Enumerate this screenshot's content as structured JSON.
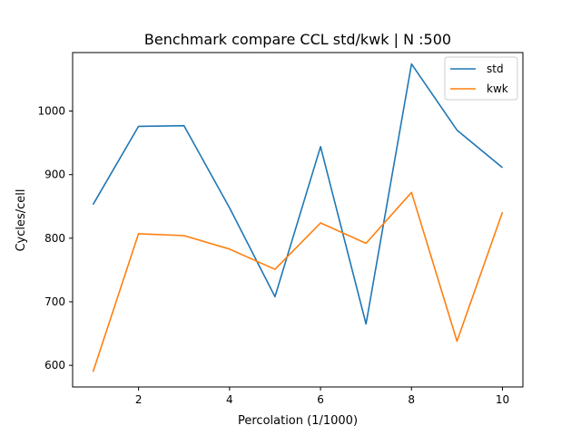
{
  "chart_data": {
    "type": "line",
    "title": "Benchmark compare CCL std/kwk | N :500",
    "xlabel": "Percolation (1/1000)",
    "ylabel": "Cycles/cell",
    "xlim": [
      0.55,
      10.45
    ],
    "ylim": [
      566,
      1092
    ],
    "xticks": [
      2,
      4,
      6,
      8,
      10
    ],
    "yticks": [
      600,
      700,
      800,
      900,
      1000
    ],
    "grid": false,
    "legend_position": "upper right",
    "x": [
      1,
      2,
      3,
      4,
      5,
      6,
      7,
      8,
      9,
      10
    ],
    "series": [
      {
        "name": "std",
        "color": "#1f77b4",
        "values": [
          853,
          976,
          977,
          848,
          708,
          944,
          665,
          1074,
          970,
          911
        ]
      },
      {
        "name": "kwk",
        "color": "#ff7f0e",
        "values": [
          590,
          807,
          804,
          783,
          751,
          824,
          792,
          872,
          638,
          841
        ]
      }
    ]
  }
}
